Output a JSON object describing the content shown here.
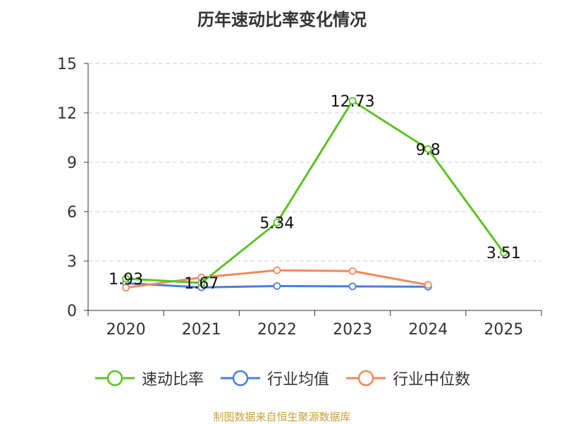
{
  "chart_data": {
    "type": "line",
    "title": "历年速动比率变化情况",
    "categories": [
      "2020",
      "2021",
      "2022",
      "2023",
      "2024",
      "2025"
    ],
    "ylim": [
      0,
      15
    ],
    "yticks": [
      0,
      3,
      6,
      9,
      12,
      15
    ],
    "grid": true,
    "legend_position": "bottom",
    "series": [
      {
        "name": "速动比率",
        "color": "#5cc225",
        "values": [
          1.93,
          1.67,
          5.34,
          12.73,
          9.8,
          3.51
        ],
        "data_labels": [
          "1.93",
          "1.67",
          "5.34",
          "12.73",
          "9.8",
          "3.51"
        ]
      },
      {
        "name": "行业均值",
        "color": "#4a7fdc",
        "values": [
          1.65,
          1.4,
          1.48,
          1.46,
          1.44,
          null
        ]
      },
      {
        "name": "行业中位数",
        "color": "#f2895a",
        "values": [
          1.38,
          2.0,
          2.44,
          2.39,
          1.55,
          null
        ]
      }
    ]
  },
  "source_note": "制图数据来自恒生聚源数据库",
  "source_note_color": "#c8a23a"
}
